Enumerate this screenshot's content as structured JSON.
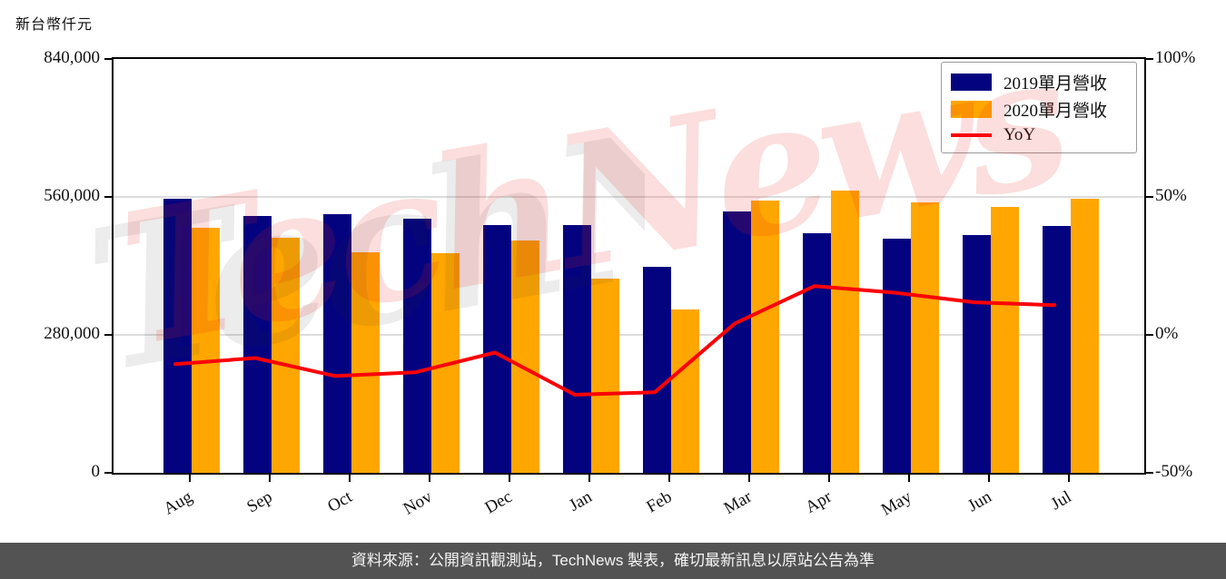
{
  "header": {
    "unit_label": "新台幣仟元"
  },
  "legend": {
    "items": [
      {
        "label": "2019單月營收",
        "type": "swatch",
        "color": "#04037F"
      },
      {
        "label": "2020單月營收",
        "type": "swatch",
        "color": "#FFA600"
      },
      {
        "label": "YoY",
        "type": "line",
        "color": "#FB0006"
      }
    ]
  },
  "watermark": {
    "text": "TechNews"
  },
  "footer": {
    "text": "資料來源：公開資訊觀測站，TechNews 製表，確切最新訊息以原站公告為準"
  },
  "colors": {
    "bar_2019": "#04037F",
    "bar_2020": "#FFA600",
    "yoy_line": "#FB0006",
    "gridline": "#DCDCDC",
    "axis": "#000000",
    "footer_bg": "#535353",
    "footer_text": "#F5F5F5",
    "watermark_pink": "rgba(225,32,26,0.15)",
    "watermark_gray": "rgba(40,40,40,0.09)"
  },
  "chart_data": {
    "type": "bar",
    "title": "",
    "categories": [
      "Aug",
      "Sep",
      "Oct",
      "Nov",
      "Dec",
      "Jan",
      "Feb",
      "Mar",
      "Apr",
      "May",
      "Jun",
      "Jul"
    ],
    "series": [
      {
        "name": "2019單月營收",
        "type": "bar",
        "axis": "left",
        "color": "#04037F",
        "values": [
          557000,
          522000,
          525000,
          516000,
          503000,
          503000,
          419000,
          531000,
          487000,
          476000,
          482000,
          502000
        ]
      },
      {
        "name": "2020單月營收",
        "type": "bar",
        "axis": "left",
        "color": "#FFA600",
        "values": [
          498000,
          478000,
          447000,
          446000,
          471000,
          394000,
          332000,
          553000,
          573000,
          549000,
          539000,
          556000
        ]
      },
      {
        "name": "YoY",
        "type": "line",
        "axis": "right",
        "color": "#FB0006",
        "values": [
          -10.6,
          -8.4,
          -14.9,
          -13.6,
          -6.4,
          -21.7,
          -20.8,
          4.1,
          17.7,
          15.3,
          11.8,
          10.8
        ]
      }
    ],
    "left_axis": {
      "title": "新台幣仟元",
      "min": 0,
      "max": 840000,
      "tick_values": [
        0,
        280000,
        560000,
        840000
      ],
      "tick_labels": [
        "0",
        "280,000",
        "560,000",
        "840,000"
      ]
    },
    "right_axis": {
      "min": -50,
      "max": 100,
      "tick_values": [
        -50,
        0,
        50,
        100
      ],
      "tick_labels": [
        "-50%",
        "0%",
        "50%",
        "100%"
      ]
    },
    "grid": "horizontal-only",
    "legend_position": "top-right"
  }
}
